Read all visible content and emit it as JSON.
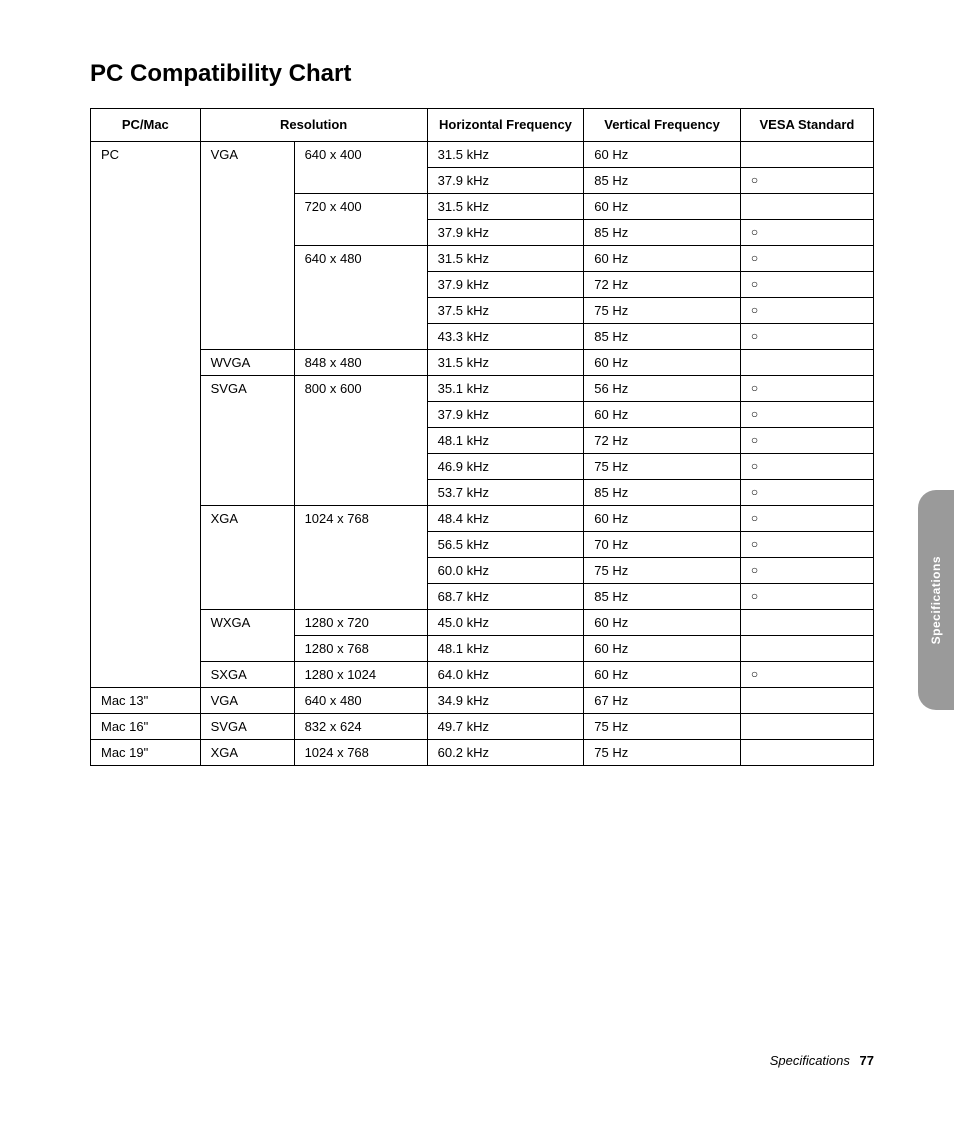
{
  "title": "PC Compatibility Chart",
  "side_tab": "Specifications",
  "footer_section": "Specifications",
  "footer_page": "77",
  "vesa_mark": "○",
  "table": {
    "headers": {
      "pcmac": "PC/Mac",
      "resolution": "Resolution",
      "hfreq": "Horizontal Frequency",
      "vfreq": "Vertical Frequency",
      "vesa": "VESA Standard"
    },
    "rows": [
      {
        "pcmac": "PC",
        "pcmac_rowspan": 21,
        "resA": "VGA",
        "resA_rowspan": 8,
        "resB": "640 x 400",
        "resB_rowspan": 2,
        "hfreq": "31.5 kHz",
        "vfreq": "60 Hz",
        "vesa": ""
      },
      {
        "hfreq": "37.9 kHz",
        "vfreq": "85 Hz",
        "vesa": "○"
      },
      {
        "resB": "720 x 400",
        "resB_rowspan": 2,
        "hfreq": "31.5 kHz",
        "vfreq": "60 Hz",
        "vesa": ""
      },
      {
        "hfreq": "37.9 kHz",
        "vfreq": "85 Hz",
        "vesa": "○"
      },
      {
        "resB": "640 x 480",
        "resB_rowspan": 4,
        "hfreq": "31.5 kHz",
        "vfreq": "60 Hz",
        "vesa": "○"
      },
      {
        "hfreq": "37.9 kHz",
        "vfreq": "72 Hz",
        "vesa": "○"
      },
      {
        "hfreq": "37.5 kHz",
        "vfreq": "75 Hz",
        "vesa": "○"
      },
      {
        "hfreq": "43.3 kHz",
        "vfreq": "85 Hz",
        "vesa": "○"
      },
      {
        "resA": "WVGA",
        "resA_rowspan": 1,
        "resB": "848 x 480",
        "resB_rowspan": 1,
        "hfreq": "31.5 kHz",
        "vfreq": "60 Hz",
        "vesa": ""
      },
      {
        "resA": "SVGA",
        "resA_rowspan": 5,
        "resB": "800 x 600",
        "resB_rowspan": 5,
        "hfreq": "35.1 kHz",
        "vfreq": "56 Hz",
        "vesa": "○"
      },
      {
        "hfreq": "37.9 kHz",
        "vfreq": "60 Hz",
        "vesa": "○"
      },
      {
        "hfreq": "48.1 kHz",
        "vfreq": "72 Hz",
        "vesa": "○"
      },
      {
        "hfreq": "46.9 kHz",
        "vfreq": "75 Hz",
        "vesa": "○"
      },
      {
        "hfreq": "53.7 kHz",
        "vfreq": "85 Hz",
        "vesa": "○"
      },
      {
        "resA": "XGA",
        "resA_rowspan": 4,
        "resB": "1024 x 768",
        "resB_rowspan": 4,
        "hfreq": "48.4 kHz",
        "vfreq": "60 Hz",
        "vesa": "○"
      },
      {
        "hfreq": "56.5 kHz",
        "vfreq": "70 Hz",
        "vesa": "○"
      },
      {
        "hfreq": "60.0 kHz",
        "vfreq": "75 Hz",
        "vesa": "○"
      },
      {
        "hfreq": "68.7 kHz",
        "vfreq": "85 Hz",
        "vesa": "○"
      },
      {
        "resA": "WXGA",
        "resA_rowspan": 2,
        "resB": "1280 x 720",
        "resB_rowspan": 1,
        "hfreq": "45.0 kHz",
        "vfreq": "60 Hz",
        "vesa": ""
      },
      {
        "resB": "1280 x 768",
        "resB_rowspan": 1,
        "hfreq": "48.1 kHz",
        "vfreq": "60 Hz",
        "vesa": ""
      },
      {
        "resA": "SXGA",
        "resA_rowspan": 1,
        "resB": "1280 x 1024",
        "resB_rowspan": 1,
        "hfreq": "64.0 kHz",
        "vfreq": "60 Hz",
        "vesa": "○"
      },
      {
        "pcmac": "Mac 13\"",
        "pcmac_rowspan": 1,
        "resA": "VGA",
        "resA_rowspan": 1,
        "resB": "640 x 480",
        "resB_rowspan": 1,
        "hfreq": "34.9 kHz",
        "vfreq": "67 Hz",
        "vesa": ""
      },
      {
        "pcmac": "Mac 16\"",
        "pcmac_rowspan": 1,
        "resA": "SVGA",
        "resA_rowspan": 1,
        "resB": "832 x 624",
        "resB_rowspan": 1,
        "hfreq": "49.7 kHz",
        "vfreq": "75 Hz",
        "vesa": ""
      },
      {
        "pcmac": "Mac 19\"",
        "pcmac_rowspan": 1,
        "resA": "XGA",
        "resA_rowspan": 1,
        "resB": "1024 x 768",
        "resB_rowspan": 1,
        "hfreq": "60.2 kHz",
        "vfreq": "75 Hz",
        "vesa": ""
      }
    ]
  }
}
